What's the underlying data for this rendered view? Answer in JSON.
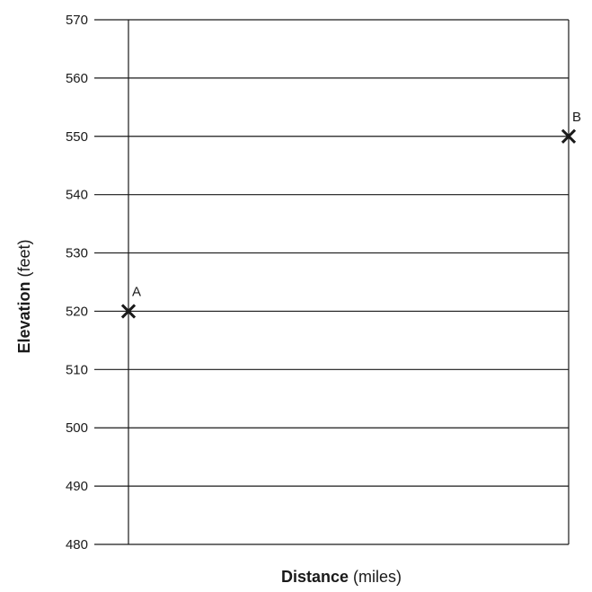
{
  "chart_data": {
    "type": "scatter",
    "title": "",
    "xlabel_bold": "Distance",
    "xlabel_rest": " (miles)",
    "ylabel_bold": "Elevation",
    "ylabel_rest": " (feet)",
    "ylim": [
      480,
      570
    ],
    "yticks": [
      "480",
      "490",
      "500",
      "510",
      "520",
      "530",
      "540",
      "550",
      "560",
      "570"
    ],
    "grid": true,
    "points": [
      {
        "label": "A",
        "x": 0,
        "y": 520
      },
      {
        "label": "B",
        "x": 1,
        "y": 550
      }
    ]
  },
  "colors": {
    "ink": "#1a1a1a",
    "background": "#ffffff"
  }
}
